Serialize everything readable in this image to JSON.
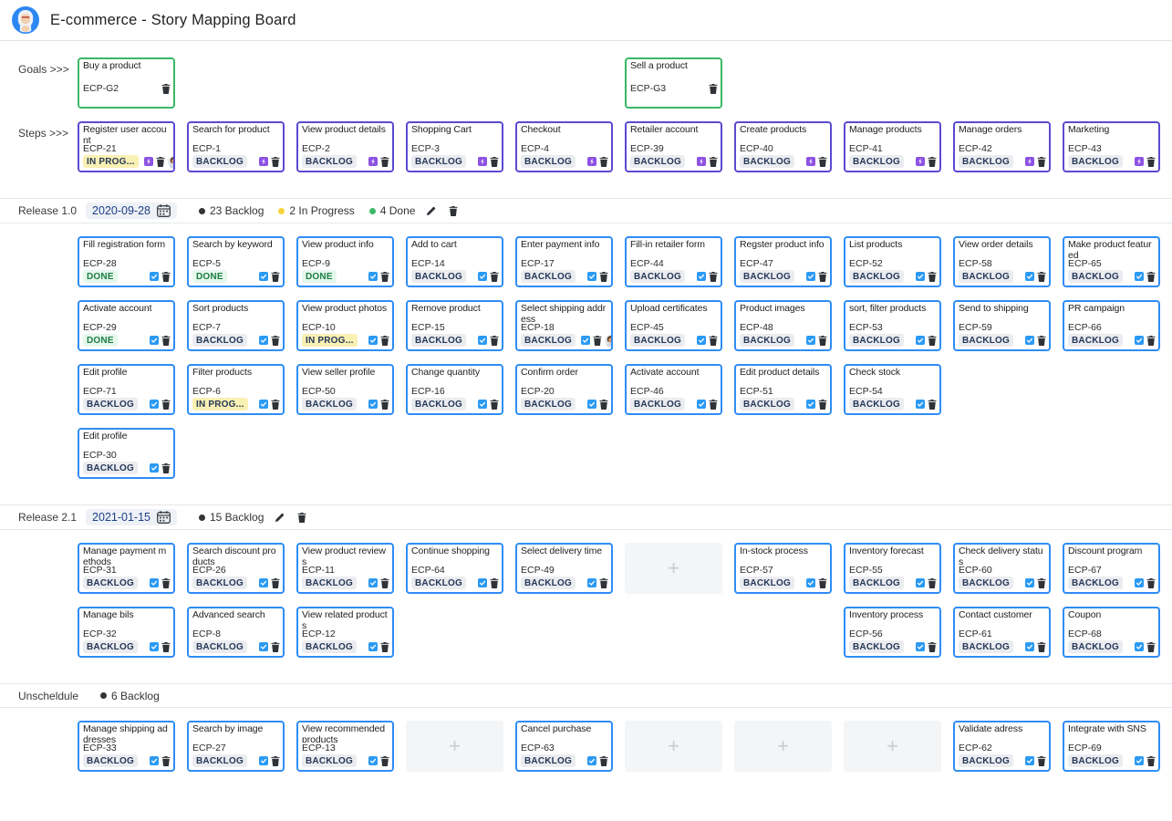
{
  "header": {
    "title": "E-commerce - Story Mapping Board"
  },
  "labels": {
    "goals": "Goals >>>",
    "steps": "Steps >>>",
    "plus": "+"
  },
  "colors": {
    "goal": "#39b865",
    "step": "#5a4ad1",
    "story": "#2e8df5"
  },
  "statuses": {
    "BACKLOG": {
      "label": "BACKLOG",
      "bg": "#ebecf0",
      "color": "#253858"
    },
    "IN_PROGRESS": {
      "label": "IN PROG...",
      "bg": "#f9f0b3",
      "color": "#253858"
    },
    "DONE": {
      "label": "DONE",
      "bg": "#e6f7ec",
      "color": "#1b7e42"
    }
  },
  "goals": [
    {
      "col": 1,
      "title": "Buy a product",
      "id": "ECP-G2"
    },
    {
      "col": 6,
      "title": "Sell a product",
      "id": "ECP-G3"
    }
  ],
  "steps": [
    {
      "col": 1,
      "title": "Register user account",
      "id": "ECP-21",
      "status": "IN_PROGRESS",
      "avatar": true
    },
    {
      "col": 2,
      "title": "Search for product",
      "id": "ECP-1",
      "status": "BACKLOG"
    },
    {
      "col": 3,
      "title": "View product details",
      "id": "ECP-2",
      "status": "BACKLOG"
    },
    {
      "col": 4,
      "title": "Shopping Cart",
      "id": "ECP-3",
      "status": "BACKLOG"
    },
    {
      "col": 5,
      "title": "Checkout",
      "id": "ECP-4",
      "status": "BACKLOG"
    },
    {
      "col": 6,
      "title": "Retailer account",
      "id": "ECP-39",
      "status": "BACKLOG"
    },
    {
      "col": 7,
      "title": "Create products",
      "id": "ECP-40",
      "status": "BACKLOG"
    },
    {
      "col": 8,
      "title": "Manage products",
      "id": "ECP-41",
      "status": "BACKLOG"
    },
    {
      "col": 9,
      "title": "Manage orders",
      "id": "ECP-42",
      "status": "BACKLOG"
    },
    {
      "col": 10,
      "title": "Marketing",
      "id": "ECP-43",
      "status": "BACKLOG"
    }
  ],
  "sections": [
    {
      "name": "Release 1.0",
      "date": "2020-09-28",
      "editable": true,
      "summary": [
        {
          "color": "#333333",
          "text": "23 Backlog"
        },
        {
          "color": "#f5d53d",
          "text": "2 In Progress"
        },
        {
          "color": "#3cb96a",
          "text": "4 Done"
        }
      ],
      "rows": [
        [
          {
            "col": 1,
            "title": "Fill registration form",
            "id": "ECP-28",
            "status": "DONE"
          },
          {
            "col": 2,
            "title": "Search by keyword",
            "id": "ECP-5",
            "status": "DONE"
          },
          {
            "col": 3,
            "title": "View product info",
            "id": "ECP-9",
            "status": "DONE"
          },
          {
            "col": 4,
            "title": "Add to cart",
            "id": "ECP-14",
            "status": "BACKLOG"
          },
          {
            "col": 5,
            "title": "Enter payment info",
            "id": "ECP-17",
            "status": "BACKLOG"
          },
          {
            "col": 6,
            "title": "Fill-in retailer form",
            "id": "ECP-44",
            "status": "BACKLOG"
          },
          {
            "col": 7,
            "title": "Regster product info",
            "id": "ECP-47",
            "status": "BACKLOG"
          },
          {
            "col": 8,
            "title": "List products",
            "id": "ECP-52",
            "status": "BACKLOG"
          },
          {
            "col": 9,
            "title": "View order details",
            "id": "ECP-58",
            "status": "BACKLOG"
          },
          {
            "col": 10,
            "title": "Make product featured",
            "id": "ECP-65",
            "status": "BACKLOG"
          }
        ],
        [
          {
            "col": 1,
            "title": "Activate account",
            "id": "ECP-29",
            "status": "DONE"
          },
          {
            "col": 2,
            "title": "Sort products",
            "id": "ECP-7",
            "status": "BACKLOG"
          },
          {
            "col": 3,
            "title": "View product photos",
            "id": "ECP-10",
            "status": "IN_PROGRESS"
          },
          {
            "col": 4,
            "title": "Remove product",
            "id": "ECP-15",
            "status": "BACKLOG"
          },
          {
            "col": 5,
            "title": "Select shipping address",
            "id": "ECP-18",
            "status": "BACKLOG",
            "avatar": true
          },
          {
            "col": 6,
            "title": "Upload certificates",
            "id": "ECP-45",
            "status": "BACKLOG"
          },
          {
            "col": 7,
            "title": "Product images",
            "id": "ECP-48",
            "status": "BACKLOG"
          },
          {
            "col": 8,
            "title": "sort, filter products",
            "id": "ECP-53",
            "status": "BACKLOG"
          },
          {
            "col": 9,
            "title": "Send to shipping",
            "id": "ECP-59",
            "status": "BACKLOG"
          },
          {
            "col": 10,
            "title": "PR campaign",
            "id": "ECP-66",
            "status": "BACKLOG"
          }
        ],
        [
          {
            "col": 1,
            "title": "Edit profile",
            "id": "ECP-71",
            "status": "BACKLOG"
          },
          {
            "col": 2,
            "title": "Filter products",
            "id": "ECP-6",
            "status": "IN_PROGRESS"
          },
          {
            "col": 3,
            "title": "View seller profile",
            "id": "ECP-50",
            "status": "BACKLOG"
          },
          {
            "col": 4,
            "title": "Change quantity",
            "id": "ECP-16",
            "status": "BACKLOG"
          },
          {
            "col": 5,
            "title": "Confirm order",
            "id": "ECP-20",
            "status": "BACKLOG"
          },
          {
            "col": 6,
            "title": "Activate account",
            "id": "ECP-46",
            "status": "BACKLOG"
          },
          {
            "col": 7,
            "title": "Edit product details",
            "id": "ECP-51",
            "status": "BACKLOG"
          },
          {
            "col": 8,
            "title": "Check stock",
            "id": "ECP-54",
            "status": "BACKLOG"
          }
        ],
        [
          {
            "col": 1,
            "title": "Edit profile",
            "id": "ECP-30",
            "status": "BACKLOG"
          }
        ]
      ]
    },
    {
      "name": "Release 2.1",
      "date": "2021-01-15",
      "editable": true,
      "summary": [
        {
          "color": "#333333",
          "text": "15 Backlog"
        }
      ],
      "rows": [
        [
          {
            "col": 1,
            "title": "Manage payment methods",
            "id": "ECP-31",
            "status": "BACKLOG"
          },
          {
            "col": 2,
            "title": "Search discount products",
            "id": "ECP-26",
            "status": "BACKLOG"
          },
          {
            "col": 3,
            "title": "View product reviews",
            "id": "ECP-11",
            "status": "BACKLOG"
          },
          {
            "col": 4,
            "title": "Continue shopping",
            "id": "ECP-64",
            "status": "BACKLOG"
          },
          {
            "col": 5,
            "title": "Select delivery time",
            "id": "ECP-49",
            "status": "BACKLOG"
          },
          {
            "col": 6,
            "plus": true
          },
          {
            "col": 7,
            "title": "In-stock process",
            "id": "ECP-57",
            "status": "BACKLOG"
          },
          {
            "col": 8,
            "title": "Inventory forecast",
            "id": "ECP-55",
            "status": "BACKLOG"
          },
          {
            "col": 9,
            "title": "Check delivery status",
            "id": "ECP-60",
            "status": "BACKLOG"
          },
          {
            "col": 10,
            "title": "Discount program",
            "id": "ECP-67",
            "status": "BACKLOG"
          }
        ],
        [
          {
            "col": 1,
            "title": "Manage bils",
            "id": "ECP-32",
            "status": "BACKLOG"
          },
          {
            "col": 2,
            "title": "Advanced search",
            "id": "ECP-8",
            "status": "BACKLOG"
          },
          {
            "col": 3,
            "title": "View related products",
            "id": "ECP-12",
            "status": "BACKLOG"
          },
          {
            "col": 8,
            "title": "Inventory process",
            "id": "ECP-56",
            "status": "BACKLOG"
          },
          {
            "col": 9,
            "title": "Contact customer",
            "id": "ECP-61",
            "status": "BACKLOG"
          },
          {
            "col": 10,
            "title": "Coupon",
            "id": "ECP-68",
            "status": "BACKLOG"
          }
        ]
      ]
    },
    {
      "name": "Unscheldule",
      "editable": false,
      "summary": [
        {
          "color": "#333333",
          "text": "6 Backlog"
        }
      ],
      "rows": [
        [
          {
            "col": 1,
            "title": "Manage shipping addresses",
            "id": "ECP-33",
            "status": "BACKLOG"
          },
          {
            "col": 2,
            "title": "Search by image",
            "id": "ECP-27",
            "status": "BACKLOG"
          },
          {
            "col": 3,
            "title": "View recommended products",
            "id": "ECP-13",
            "status": "BACKLOG"
          },
          {
            "col": 4,
            "plus": true
          },
          {
            "col": 5,
            "title": "Cancel purchase",
            "id": "ECP-63",
            "status": "BACKLOG"
          },
          {
            "col": 6,
            "plus": true
          },
          {
            "col": 7,
            "plus": true
          },
          {
            "col": 8,
            "plus": true
          },
          {
            "col": 9,
            "title": "Validate adress",
            "id": "ECP-62",
            "status": "BACKLOG"
          },
          {
            "col": 10,
            "title": "Integrate with SNS",
            "id": "ECP-69",
            "status": "BACKLOG"
          }
        ]
      ]
    }
  ]
}
